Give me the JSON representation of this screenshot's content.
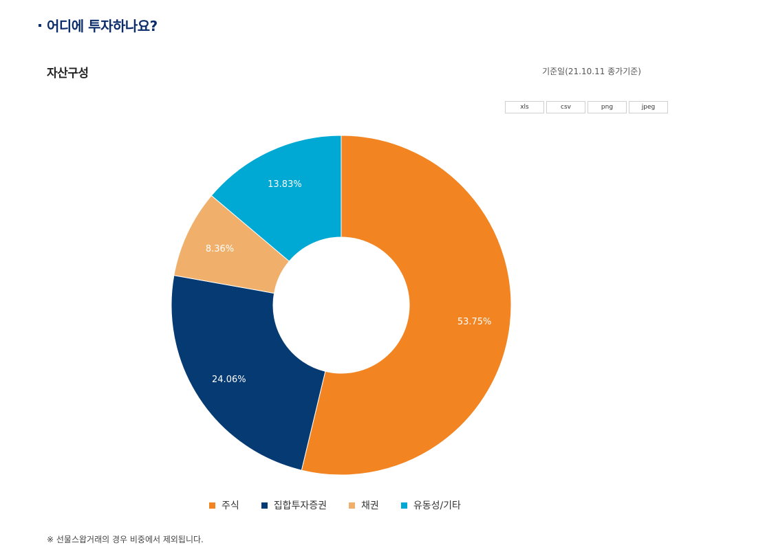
{
  "section": {
    "title": "어디에 투자하나요?"
  },
  "sub_title": "자산구성",
  "ref_date": "기준일(21.10.11 종가기준)",
  "export_buttons": [
    "xls",
    "csv",
    "png",
    "jpeg"
  ],
  "footnote": "※ 선물스왑거래의 경우 비중에서 제외됩니다.",
  "chart_data": {
    "type": "pie",
    "donut": true,
    "title": "",
    "legend_position": "bottom",
    "categories": [
      "주식",
      "집합투자증권",
      "채권",
      "유동성/기타"
    ],
    "values": [
      53.75,
      24.06,
      8.36,
      13.83
    ],
    "labels": [
      "53.75%",
      "24.06%",
      "8.36%",
      "13.83%"
    ],
    "colors": [
      "#f28422",
      "#063a72",
      "#f0b06c",
      "#00a9d3"
    ]
  }
}
